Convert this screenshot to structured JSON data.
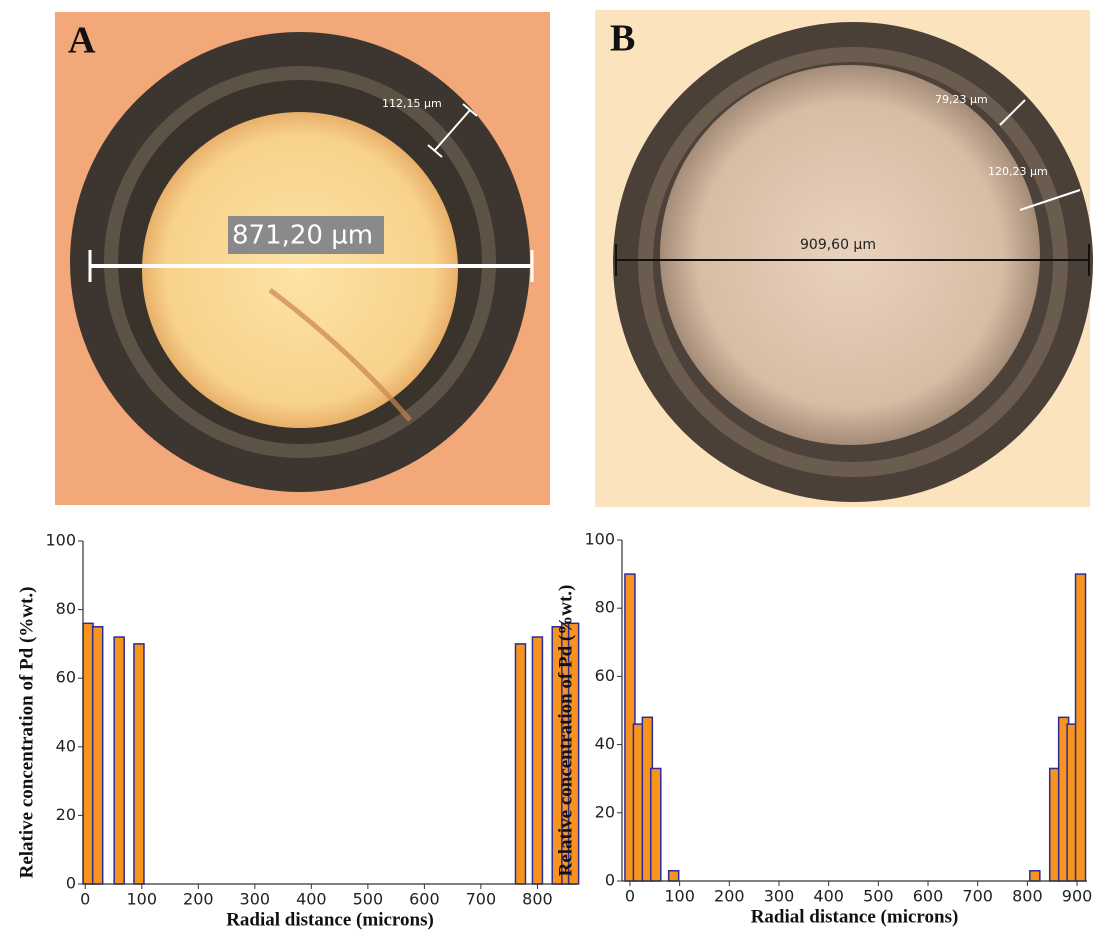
{
  "images": [
    {
      "label": "A",
      "annotations": [
        "112,15 µm",
        "871,20 µm"
      ]
    },
    {
      "label": "B",
      "annotations": [
        "79,23 µm",
        "120,23 µm",
        "909,60 µm"
      ]
    }
  ],
  "chart_data": [
    {
      "type": "bar",
      "x_label": "Radial distance (microns)",
      "y_label": "Relative concentration of Pd (%wt.)",
      "x": [
        5,
        22,
        60,
        95,
        770,
        800,
        835,
        852,
        864
      ],
      "values": [
        76,
        75,
        72,
        70,
        70,
        72,
        75,
        76,
        76
      ],
      "color": "#f7941d",
      "edgecolor": "#2b2b9c",
      "xlim": [
        -4,
        870
      ],
      "xticks": [
        0,
        100,
        200,
        300,
        400,
        500,
        600,
        700,
        800
      ],
      "ylim": [
        0,
        100
      ],
      "yticks": [
        0,
        20,
        40,
        60,
        80,
        100
      ]
    },
    {
      "type": "bar",
      "x_label": "Radial distance (microns)",
      "y_label": "Relative concentration of Pd (%wt.)",
      "x": [
        0,
        17,
        35,
        52,
        88,
        815,
        855,
        873,
        890,
        907
      ],
      "values": [
        90,
        46,
        48,
        33,
        3,
        3,
        33,
        48,
        46,
        90
      ],
      "color": "#f7941d",
      "edgecolor": "#2b2b9c",
      "xlim": [
        -16,
        920
      ],
      "xticks": [
        0,
        100,
        200,
        300,
        400,
        500,
        600,
        700,
        800,
        900
      ],
      "ylim": [
        0,
        100
      ],
      "yticks": [
        0,
        20,
        40,
        60,
        80,
        100
      ]
    }
  ]
}
